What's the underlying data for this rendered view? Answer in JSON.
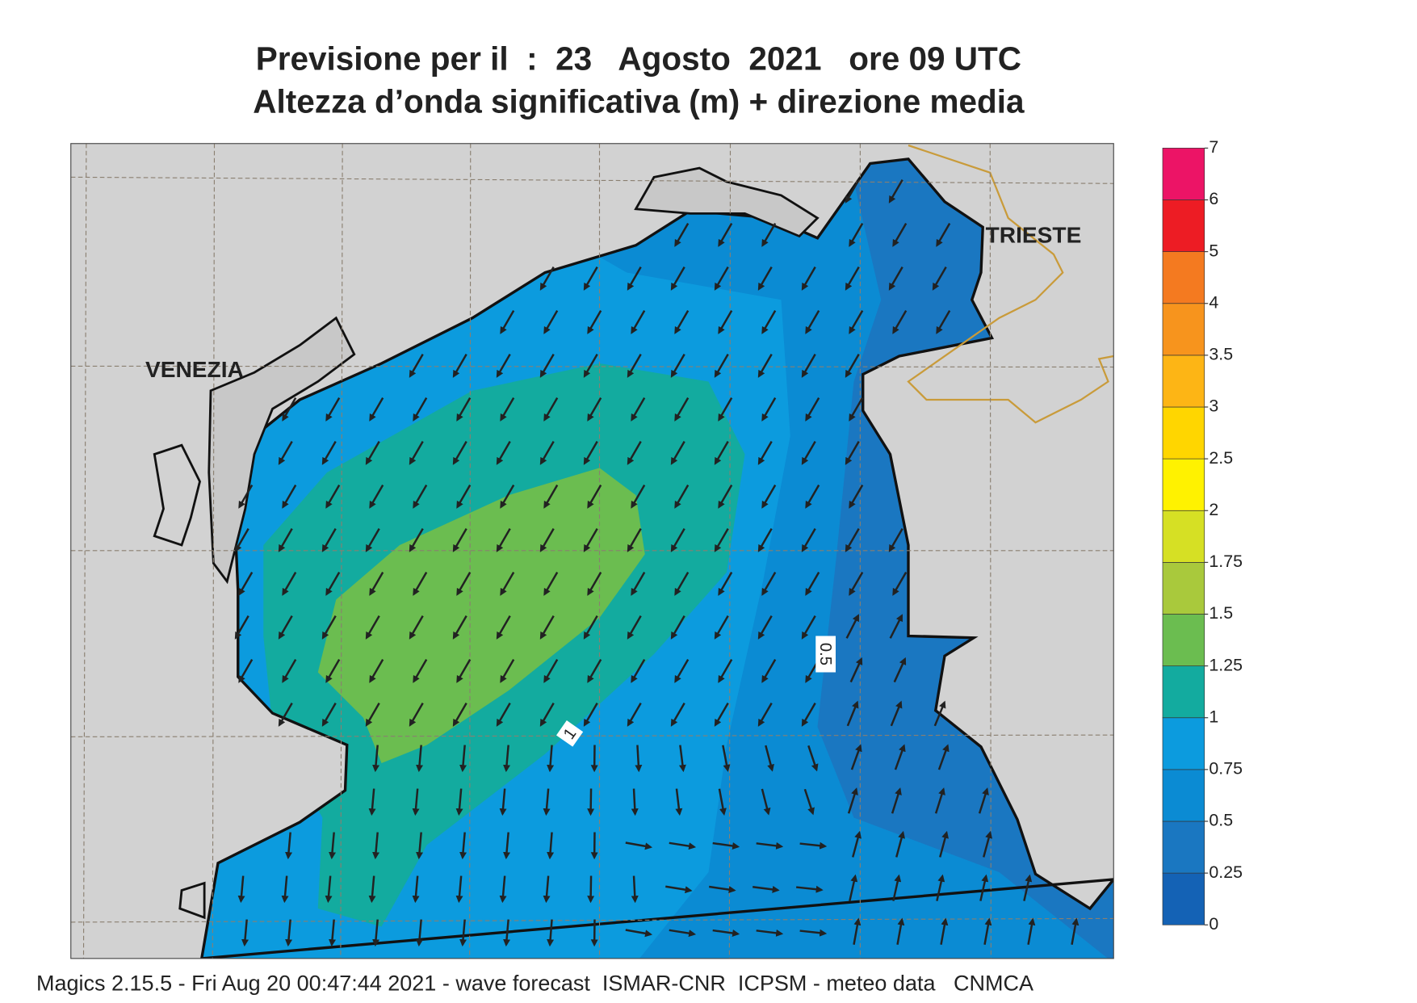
{
  "header": {
    "title_line1": "Previsione per il  :  23   Agosto  2021   ore 09 UTC",
    "title_line2": "Altezza d’onda significativa (m) + direzione media"
  },
  "map": {
    "place_labels": [
      "VENEZIA",
      "TRIESTE"
    ],
    "contour_labels": [
      "0.5",
      "1"
    ]
  },
  "colorbar": {
    "levels": [
      0,
      0.25,
      0.5,
      0.75,
      1,
      1.25,
      1.5,
      1.75,
      2,
      2.5,
      3,
      3.5,
      4,
      5,
      6,
      7
    ],
    "colors": [
      "#1462b5",
      "#1a77c1",
      "#0b8bd3",
      "#0c9bde",
      "#13ab9f",
      "#6bbd50",
      "#a9c93c",
      "#d6e024",
      "#fff200",
      "#ffd600",
      "#fdb515",
      "#f7941d",
      "#f47a20",
      "#ed1c24",
      "#ec1466"
    ]
  },
  "footer": "Magics 2.15.5 - Fri Aug 20 00:47:44 2021 - wave forecast  ISMAR-CNR  ICPSM - meteo data   CNMCA"
}
